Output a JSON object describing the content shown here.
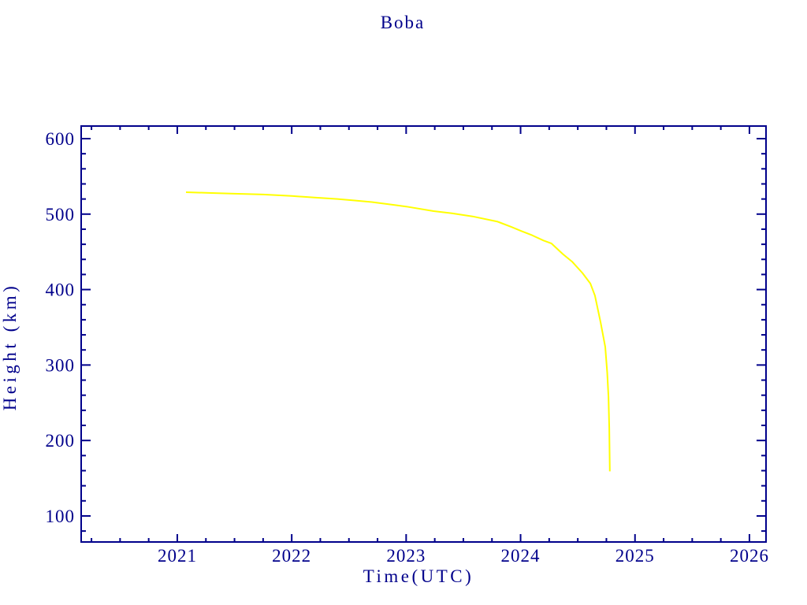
{
  "chart_data": {
    "type": "line",
    "title": "Boba",
    "xlabel": "Time(UTC)",
    "ylabel": "Height (km)",
    "xlim": [
      2020.16,
      2026.145
    ],
    "ylim": [
      65.5,
      616.7
    ],
    "x_major_ticks": [
      2021,
      2022,
      2023,
      2024,
      2025,
      2026
    ],
    "x_minor_step": 0.25,
    "y_major_ticks": [
      600,
      500,
      400,
      300,
      200,
      100
    ],
    "y_minor_step": 20,
    "grid": false,
    "legend_position": "none",
    "axis_color": "#00008b",
    "line_color": "#ffff00",
    "background_color": "#ffffff",
    "series": [
      {
        "name": "Boba",
        "points": [
          [
            2021.076,
            529
          ],
          [
            2021.3,
            528
          ],
          [
            2021.5,
            527
          ],
          [
            2021.75,
            526
          ],
          [
            2022.0,
            524
          ],
          [
            2022.2,
            522
          ],
          [
            2022.4,
            520
          ],
          [
            2022.55,
            518
          ],
          [
            2022.7,
            516
          ],
          [
            2022.9,
            512
          ],
          [
            2023.0,
            510
          ],
          [
            2023.24,
            504
          ],
          [
            2023.4,
            501
          ],
          [
            2023.58,
            497
          ],
          [
            2023.8,
            490
          ],
          [
            2023.92,
            483
          ],
          [
            2024.0,
            478
          ],
          [
            2024.1,
            472
          ],
          [
            2024.2,
            465
          ],
          [
            2024.27,
            461
          ],
          [
            2024.37,
            447
          ],
          [
            2024.45,
            437
          ],
          [
            2024.54,
            422
          ],
          [
            2024.61,
            408
          ],
          [
            2024.65,
            392
          ],
          [
            2024.7,
            356
          ],
          [
            2024.74,
            324
          ],
          [
            2024.757,
            290
          ],
          [
            2024.768,
            258
          ],
          [
            2024.775,
            216
          ],
          [
            2024.78,
            159
          ]
        ]
      }
    ]
  }
}
